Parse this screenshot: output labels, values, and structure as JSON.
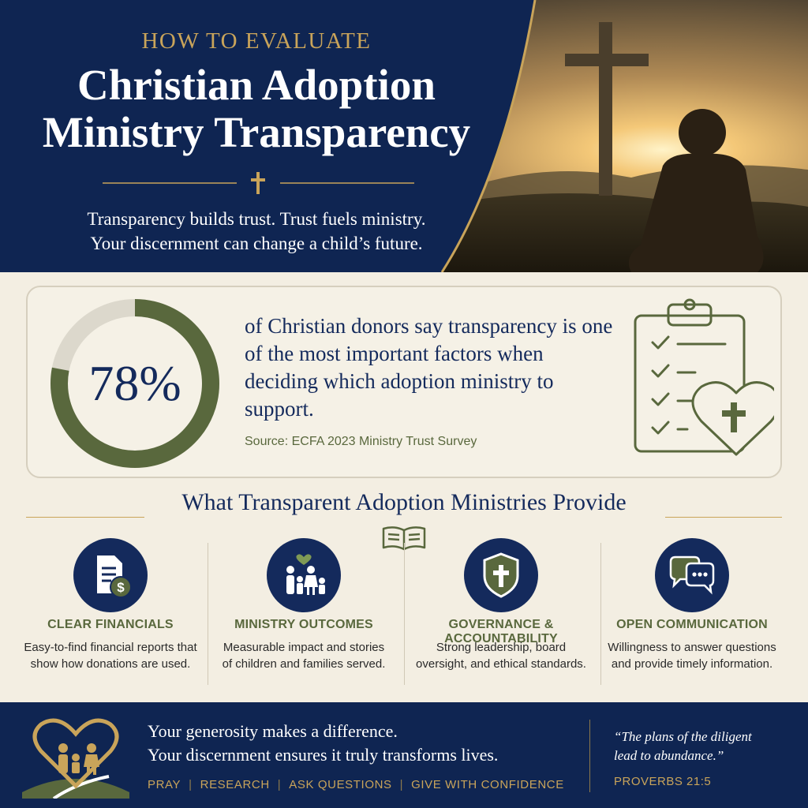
{
  "header": {
    "kicker": "HOW TO EVALUATE",
    "title_line1": "Christian Adoption",
    "title_line2": "Ministry Transparency",
    "tagline_line1": "Transparency builds trust. Trust fuels ministry.",
    "tagline_line2": "Your discernment can change a child’s future."
  },
  "stat": {
    "value": "78%",
    "fraction": 0.78,
    "text": "of Christian donors say transparency is one of the most important factors when deciding which adoption ministry to support.",
    "source": "Source: ECFA 2023 Ministry Trust Survey"
  },
  "section": {
    "title": "What Transparent Adoption Ministries Provide"
  },
  "features": [
    {
      "icon": "financial-document-icon",
      "title": "CLEAR FINANCIALS",
      "desc": "Easy-to-find financial reports that show how donations are used."
    },
    {
      "icon": "family-icon",
      "title": "MINISTRY OUTCOMES",
      "desc": "Measurable impact and stories of children and families served."
    },
    {
      "icon": "shield-cross-icon",
      "title": "GOVERNANCE & ACCOUNTABILITY",
      "desc": "Strong leadership, board oversight, and ethical standards."
    },
    {
      "icon": "chat-bubbles-icon",
      "title": "OPEN COMMUNICATION",
      "desc": "Willingness to answer questions and provide timely information."
    }
  ],
  "footer": {
    "message_line1": "Your generosity makes a difference.",
    "message_line2": "Your discernment ensures it truly transforms lives.",
    "actions": [
      "PRAY",
      "RESEARCH",
      "ASK QUESTIONS",
      "GIVE WITH CONFIDENCE"
    ],
    "quote_line1": "“The plans of the diligent",
    "quote_line2": "lead to abundance.”",
    "quote_ref": "PROVERBS 21:5"
  },
  "colors": {
    "navy": "#0f2552",
    "gold": "#c9a45a",
    "olive": "#59683d",
    "cream": "#f3eee2"
  }
}
